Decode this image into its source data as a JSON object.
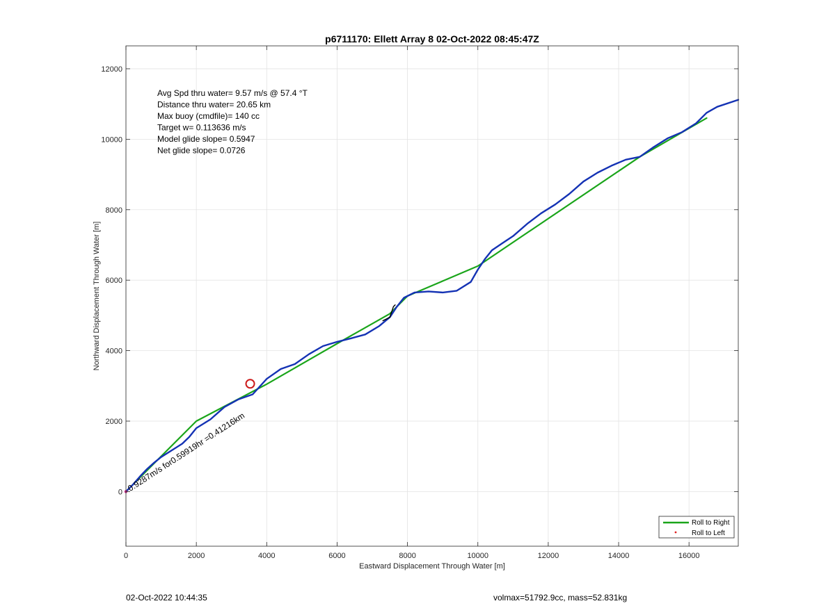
{
  "chart_data": {
    "type": "line",
    "title": "p6711170: Ellett Array 8 02-Oct-2022 08:45:47Z",
    "xlabel": "Eastward Displacement Through Water [m]",
    "ylabel": "Northward Displacement Through Water [m]",
    "xlim": [
      0,
      17400
    ],
    "ylim": [
      -1550,
      12650
    ],
    "xticks": [
      0,
      2000,
      4000,
      6000,
      8000,
      10000,
      12000,
      14000,
      16000
    ],
    "yticks": [
      0,
      2000,
      4000,
      6000,
      8000,
      10000,
      12000
    ],
    "grid": true,
    "legend_position": "bottom-right",
    "legend": [
      {
        "label": "Roll to Right",
        "color": "#1aa51a",
        "marker": "line"
      },
      {
        "label": "Roll to Left",
        "color": "#e02020",
        "marker": "dot"
      }
    ],
    "series": [
      {
        "name": "Roll to Right",
        "color": "#1aa51a",
        "x": [
          0,
          2000,
          4000,
          6000,
          7500,
          8000,
          10000,
          14600,
          16500
        ],
        "y": [
          0,
          2000,
          3050,
          4200,
          5050,
          5550,
          6400,
          9500,
          10600
        ]
      },
      {
        "color": "#1432b4",
        "x": [
          0,
          200,
          400,
          600,
          800,
          1000,
          1300,
          1600,
          1800,
          2000,
          2400,
          2800,
          3200,
          3600,
          4000,
          4400,
          4800,
          5200,
          5600,
          6000,
          6400,
          6800,
          7200,
          7500,
          7700,
          7900,
          8200,
          8600,
          9000,
          9400,
          9800,
          10000,
          10200,
          10400,
          10700,
          11000,
          11400,
          11800,
          12200,
          12600,
          13000,
          13400,
          13800,
          14200,
          14600,
          15000,
          15400,
          15800,
          16200,
          16500,
          16800,
          17400
        ],
        "y": [
          0,
          200,
          430,
          640,
          820,
          980,
          1170,
          1360,
          1550,
          1800,
          2050,
          2400,
          2620,
          2760,
          3200,
          3480,
          3620,
          3900,
          4130,
          4250,
          4350,
          4460,
          4700,
          4950,
          5250,
          5500,
          5650,
          5680,
          5650,
          5700,
          5950,
          6300,
          6600,
          6850,
          7050,
          7250,
          7600,
          7900,
          8150,
          8450,
          8800,
          9050,
          9250,
          9420,
          9500,
          9780,
          10030,
          10200,
          10450,
          10750,
          10920,
          11120
        ]
      },
      {
        "color": "#000000",
        "x": [
          7300,
          7400,
          7500,
          7600,
          7650
        ],
        "y": [
          4850,
          4900,
          4950,
          5250,
          5300
        ]
      }
    ],
    "markers": [
      {
        "type": "circle",
        "color": "#cc1a1a",
        "x": 3530,
        "y": 3060
      }
    ],
    "stats": [
      "Avg Spd thru water=  9.57 m/s @  57.4 °T",
      "Distance thru water= 20.65 km",
      "Max buoy (cmdfile)= 140 cc",
      "Target w= 0.113636 m/s",
      "Model glide slope= 0.5947",
      "Net glide slope= 0.0726"
    ],
    "annotation": {
      "text": "0.9287m/s for0.59919hr =0.41216km",
      "color": "#000000",
      "x": 120,
      "y": 0,
      "angle_deg": -33
    }
  },
  "footer": {
    "left": "02-Oct-2022 10:44:35",
    "right": "volmax=51792.9cc, mass=52.831kg"
  }
}
